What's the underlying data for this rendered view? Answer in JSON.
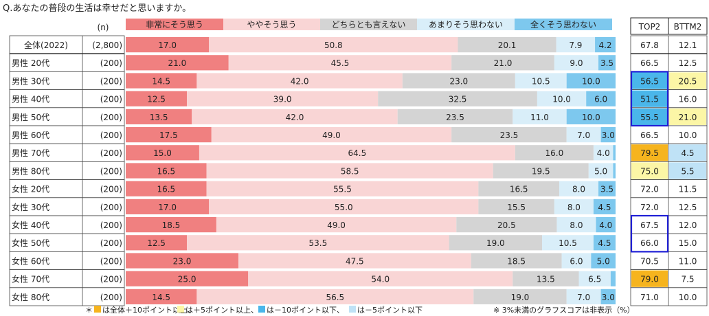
{
  "title": "Q.あなたの普段の生活は幸せだと思いますか。",
  "n_header": "(n)",
  "legend": [
    "非常にそう思う",
    "ややそう思う",
    "どちらとも言えない",
    "あまりそう思わない",
    "全くそう思わない"
  ],
  "colors": {
    "seg": [
      "#f08080",
      "#f9d5d5",
      "#d4d4d4",
      "#d9eef9",
      "#7dc8ee"
    ],
    "hl_orange": "#f6b41e",
    "hl_yellow": "#fcf6a6",
    "hl_blue": "#4ab6ea",
    "hl_lightblue": "#bfe2f6",
    "box_border": "#1f1fd6"
  },
  "summary_headers": [
    "TOP2",
    "BTTM2"
  ],
  "footnote_left": [
    "＊",
    "は全体＋10ポイント以上、",
    "は＋5ポイント以上、",
    "は－10ポイント以下、",
    "は－5ポイント以下"
  ],
  "footnote_right": "※ 3%未満のグラフスコアは非表示（%）",
  "chart_data": {
    "type": "bar",
    "stacked": true,
    "orientation": "horizontal",
    "unit": "%",
    "series_names": [
      "非常にそう思う",
      "ややそう思う",
      "どちらとも言えない",
      "あまりそう思わない",
      "全くそう思わない"
    ],
    "rows": [
      {
        "label": "全体(2022)",
        "n": "(2,800)",
        "values": [
          17.0,
          50.8,
          20.1,
          7.9,
          4.2
        ],
        "top2": "67.8",
        "bttm2": "12.1",
        "top2_hl": null,
        "bttm2_hl": null
      },
      {
        "label": "男性 20代",
        "n": "(200)",
        "values": [
          21.0,
          45.5,
          21.0,
          9.0,
          3.5
        ],
        "top2": "66.5",
        "bttm2": "12.5",
        "top2_hl": null,
        "bttm2_hl": null
      },
      {
        "label": "男性 30代",
        "n": "(200)",
        "values": [
          14.5,
          42.0,
          23.0,
          10.5,
          10.0
        ],
        "top2": "56.5",
        "bttm2": "20.5",
        "top2_hl": "blue",
        "bttm2_hl": "yellow"
      },
      {
        "label": "男性 40代",
        "n": "(200)",
        "values": [
          12.5,
          39.0,
          32.5,
          10.0,
          6.0
        ],
        "top2": "51.5",
        "bttm2": "16.0",
        "top2_hl": "blue",
        "bttm2_hl": null
      },
      {
        "label": "男性 50代",
        "n": "(200)",
        "values": [
          13.5,
          42.0,
          23.5,
          11.0,
          10.0
        ],
        "top2": "55.5",
        "bttm2": "21.0",
        "top2_hl": "blue",
        "bttm2_hl": "yellow"
      },
      {
        "label": "男性 60代",
        "n": "(200)",
        "values": [
          17.5,
          49.0,
          23.5,
          7.0,
          3.0
        ],
        "top2": "66.5",
        "bttm2": "10.0",
        "top2_hl": null,
        "bttm2_hl": null
      },
      {
        "label": "男性 70代",
        "n": "(200)",
        "values": [
          15.0,
          64.5,
          16.0,
          4.0,
          0.5
        ],
        "top2": "79.5",
        "bttm2": "4.5",
        "top2_hl": "orange",
        "bttm2_hl": "lightblue"
      },
      {
        "label": "男性 80代",
        "n": "(200)",
        "values": [
          16.5,
          58.5,
          19.5,
          5.0,
          0.5
        ],
        "top2": "75.0",
        "bttm2": "5.5",
        "top2_hl": "yellow",
        "bttm2_hl": "lightblue"
      },
      {
        "label": "女性 20代",
        "n": "(200)",
        "values": [
          16.5,
          55.5,
          16.5,
          8.0,
          3.5
        ],
        "top2": "72.0",
        "bttm2": "11.5",
        "top2_hl": null,
        "bttm2_hl": null
      },
      {
        "label": "女性 30代",
        "n": "(200)",
        "values": [
          17.0,
          55.0,
          15.5,
          8.0,
          4.5
        ],
        "top2": "72.0",
        "bttm2": "12.5",
        "top2_hl": null,
        "bttm2_hl": null
      },
      {
        "label": "女性 40代",
        "n": "(200)",
        "values": [
          18.5,
          49.0,
          20.5,
          8.0,
          4.0
        ],
        "top2": "67.5",
        "bttm2": "12.0",
        "top2_hl": null,
        "bttm2_hl": null
      },
      {
        "label": "女性 50代",
        "n": "(200)",
        "values": [
          12.5,
          53.5,
          19.0,
          10.5,
          4.5
        ],
        "top2": "66.0",
        "bttm2": "15.0",
        "top2_hl": null,
        "bttm2_hl": null
      },
      {
        "label": "女性 60代",
        "n": "(200)",
        "values": [
          23.0,
          47.5,
          18.5,
          6.0,
          5.0
        ],
        "top2": "70.5",
        "bttm2": "11.0",
        "top2_hl": null,
        "bttm2_hl": null
      },
      {
        "label": "女性 70代",
        "n": "(200)",
        "values": [
          25.0,
          54.0,
          13.5,
          6.5,
          1.0
        ],
        "top2": "79.0",
        "bttm2": "7.5",
        "top2_hl": "orange",
        "bttm2_hl": null
      },
      {
        "label": "女性 80代",
        "n": "(200)",
        "values": [
          14.5,
          56.5,
          19.0,
          7.0,
          3.0
        ],
        "top2": "71.0",
        "bttm2": "10.0",
        "top2_hl": null,
        "bttm2_hl": null
      }
    ],
    "label_threshold": 3.0
  }
}
